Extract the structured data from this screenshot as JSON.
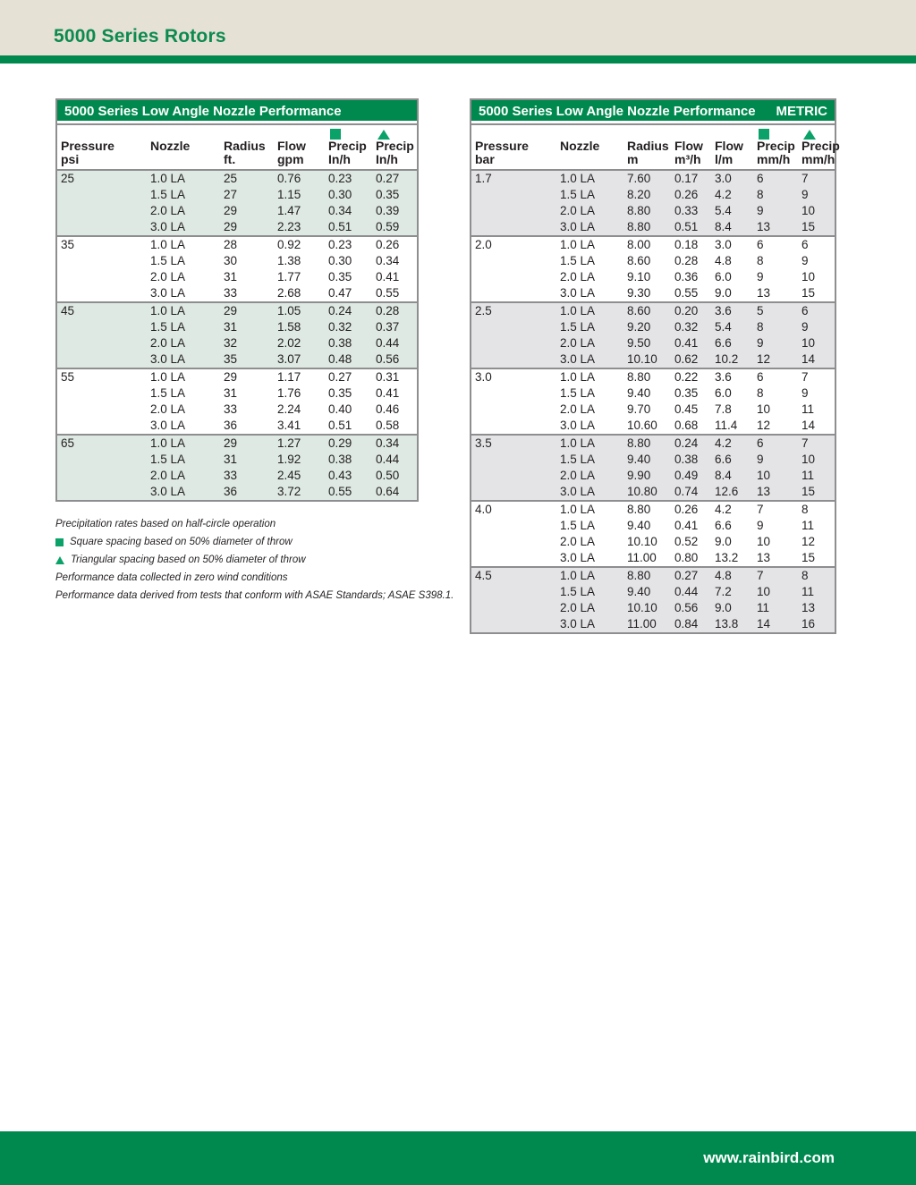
{
  "page": {
    "title": "5000 Series Rotors",
    "footer_url": "www.rainbird.com"
  },
  "colors": {
    "brand_green": "#00894e",
    "accent_green": "#0aa268",
    "beige": "#e5e1d4",
    "mint_row": "#dde9e2",
    "gray_row": "#e4e4e6",
    "border_gray": "#8e8e90",
    "text_dark": "#231f20",
    "title_text_green": "#0d8a4f"
  },
  "tables": [
    {
      "title": "5000 Series Low Angle Nozzle Performance",
      "unit_tag": "",
      "columns": [
        {
          "label1": "Pressure",
          "label2": "psi",
          "icon": ""
        },
        {
          "label1": "Nozzle",
          "label2": "",
          "icon": ""
        },
        {
          "label1": "Radius",
          "label2": "ft.",
          "icon": ""
        },
        {
          "label1": "Flow",
          "label2": "gpm",
          "icon": ""
        },
        {
          "label1": "Precip",
          "label2": "In/h",
          "icon": "square"
        },
        {
          "label1": "Precip",
          "label2": "In/h",
          "icon": "triangle"
        }
      ],
      "groups": [
        {
          "pressure": "25",
          "rows": [
            [
              "1.0 LA",
              "25",
              "0.76",
              "0.23",
              "0.27"
            ],
            [
              "1.5 LA",
              "27",
              "1.15",
              "0.30",
              "0.35"
            ],
            [
              "2.0 LA",
              "29",
              "1.47",
              "0.34",
              "0.39"
            ],
            [
              "3.0 LA",
              "29",
              "2.23",
              "0.51",
              "0.59"
            ]
          ]
        },
        {
          "pressure": "35",
          "rows": [
            [
              "1.0 LA",
              "28",
              "0.92",
              "0.23",
              "0.26"
            ],
            [
              "1.5 LA",
              "30",
              "1.38",
              "0.30",
              "0.34"
            ],
            [
              "2.0 LA",
              "31",
              "1.77",
              "0.35",
              "0.41"
            ],
            [
              "3.0 LA",
              "33",
              "2.68",
              "0.47",
              "0.55"
            ]
          ]
        },
        {
          "pressure": "45",
          "rows": [
            [
              "1.0 LA",
              "29",
              "1.05",
              "0.24",
              "0.28"
            ],
            [
              "1.5 LA",
              "31",
              "1.58",
              "0.32",
              "0.37"
            ],
            [
              "2.0 LA",
              "32",
              "2.02",
              "0.38",
              "0.44"
            ],
            [
              "3.0 LA",
              "35",
              "3.07",
              "0.48",
              "0.56"
            ]
          ]
        },
        {
          "pressure": "55",
          "rows": [
            [
              "1.0 LA",
              "29",
              "1.17",
              "0.27",
              "0.31"
            ],
            [
              "1.5 LA",
              "31",
              "1.76",
              "0.35",
              "0.41"
            ],
            [
              "2.0 LA",
              "33",
              "2.24",
              "0.40",
              "0.46"
            ],
            [
              "3.0 LA",
              "36",
              "3.41",
              "0.51",
              "0.58"
            ]
          ]
        },
        {
          "pressure": "65",
          "rows": [
            [
              "1.0 LA",
              "29",
              "1.27",
              "0.29",
              "0.34"
            ],
            [
              "1.5 LA",
              "31",
              "1.92",
              "0.38",
              "0.44"
            ],
            [
              "2.0 LA",
              "33",
              "2.45",
              "0.43",
              "0.50"
            ],
            [
              "3.0 LA",
              "36",
              "3.72",
              "0.55",
              "0.64"
            ]
          ]
        }
      ]
    },
    {
      "title": "5000 Series Low Angle Nozzle Performance",
      "unit_tag": "METRIC",
      "columns": [
        {
          "label1": "Pressure",
          "label2": "bar",
          "icon": ""
        },
        {
          "label1": "Nozzle",
          "label2": "",
          "icon": ""
        },
        {
          "label1": "Radius",
          "label2": "m",
          "icon": ""
        },
        {
          "label1": "Flow",
          "label2": "m³/h",
          "icon": ""
        },
        {
          "label1": "Flow",
          "label2": "l/m",
          "icon": ""
        },
        {
          "label1": "Precip",
          "label2": "mm/h",
          "icon": "square"
        },
        {
          "label1": "Precip",
          "label2": "mm/h",
          "icon": "triangle"
        }
      ],
      "groups": [
        {
          "pressure": "1.7",
          "rows": [
            [
              "1.0 LA",
              "7.60",
              "0.17",
              "3.0",
              "6",
              "7"
            ],
            [
              "1.5 LA",
              "8.20",
              "0.26",
              "4.2",
              "8",
              "9"
            ],
            [
              "2.0 LA",
              "8.80",
              "0.33",
              "5.4",
              "9",
              "10"
            ],
            [
              "3.0 LA",
              "8.80",
              "0.51",
              "8.4",
              "13",
              "15"
            ]
          ]
        },
        {
          "pressure": "2.0",
          "rows": [
            [
              "1.0 LA",
              "8.00",
              "0.18",
              "3.0",
              "6",
              "6"
            ],
            [
              "1.5 LA",
              "8.60",
              "0.28",
              "4.8",
              "8",
              "9"
            ],
            [
              "2.0 LA",
              "9.10",
              "0.36",
              "6.0",
              "9",
              "10"
            ],
            [
              "3.0 LA",
              "9.30",
              "0.55",
              "9.0",
              "13",
              "15"
            ]
          ]
        },
        {
          "pressure": "2.5",
          "rows": [
            [
              "1.0 LA",
              "8.60",
              "0.20",
              "3.6",
              "5",
              "6"
            ],
            [
              "1.5 LA",
              "9.20",
              "0.32",
              "5.4",
              "8",
              "9"
            ],
            [
              "2.0 LA",
              "9.50",
              "0.41",
              "6.6",
              "9",
              "10"
            ],
            [
              "3.0 LA",
              "10.10",
              "0.62",
              "10.2",
              "12",
              "14"
            ]
          ]
        },
        {
          "pressure": "3.0",
          "rows": [
            [
              "1.0 LA",
              "8.80",
              "0.22",
              "3.6",
              "6",
              "7"
            ],
            [
              "1.5 LA",
              "9.40",
              "0.35",
              "6.0",
              "8",
              "9"
            ],
            [
              "2.0 LA",
              "9.70",
              "0.45",
              "7.8",
              "10",
              "11"
            ],
            [
              "3.0 LA",
              "10.60",
              "0.68",
              "11.4",
              "12",
              "14"
            ]
          ]
        },
        {
          "pressure": "3.5",
          "rows": [
            [
              "1.0 LA",
              "8.80",
              "0.24",
              "4.2",
              "6",
              "7"
            ],
            [
              "1.5 LA",
              "9.40",
              "0.38",
              "6.6",
              "9",
              "10"
            ],
            [
              "2.0 LA",
              "9.90",
              "0.49",
              "8.4",
              "10",
              "11"
            ],
            [
              "3.0 LA",
              "10.80",
              "0.74",
              "12.6",
              "13",
              "15"
            ]
          ]
        },
        {
          "pressure": "4.0",
          "rows": [
            [
              "1.0 LA",
              "8.80",
              "0.26",
              "4.2",
              "7",
              "8"
            ],
            [
              "1.5 LA",
              "9.40",
              "0.41",
              "6.6",
              "9",
              "11"
            ],
            [
              "2.0 LA",
              "10.10",
              "0.52",
              "9.0",
              "10",
              "12"
            ],
            [
              "3.0 LA",
              "11.00",
              "0.80",
              "13.2",
              "13",
              "15"
            ]
          ]
        },
        {
          "pressure": "4.5",
          "rows": [
            [
              "1.0 LA",
              "8.80",
              "0.27",
              "4.8",
              "7",
              "8"
            ],
            [
              "1.5 LA",
              "9.40",
              "0.44",
              "7.2",
              "10",
              "11"
            ],
            [
              "2.0 LA",
              "10.10",
              "0.56",
              "9.0",
              "11",
              "13"
            ],
            [
              "3.0 LA",
              "11.00",
              "0.84",
              "13.8",
              "14",
              "16"
            ]
          ]
        }
      ]
    }
  ],
  "footnotes": [
    {
      "icon": "",
      "text": "Precipitation rates based on half-circle operation"
    },
    {
      "icon": "square",
      "text": "Square spacing based on 50% diameter of throw"
    },
    {
      "icon": "triangle",
      "text": "Triangular spacing based on 50% diameter of throw"
    },
    {
      "icon": "",
      "text": "Performance data collected in zero wind conditions"
    },
    {
      "icon": "",
      "text": "Performance data derived from tests that conform with ASAE Standards; ASAE S398.1."
    }
  ]
}
